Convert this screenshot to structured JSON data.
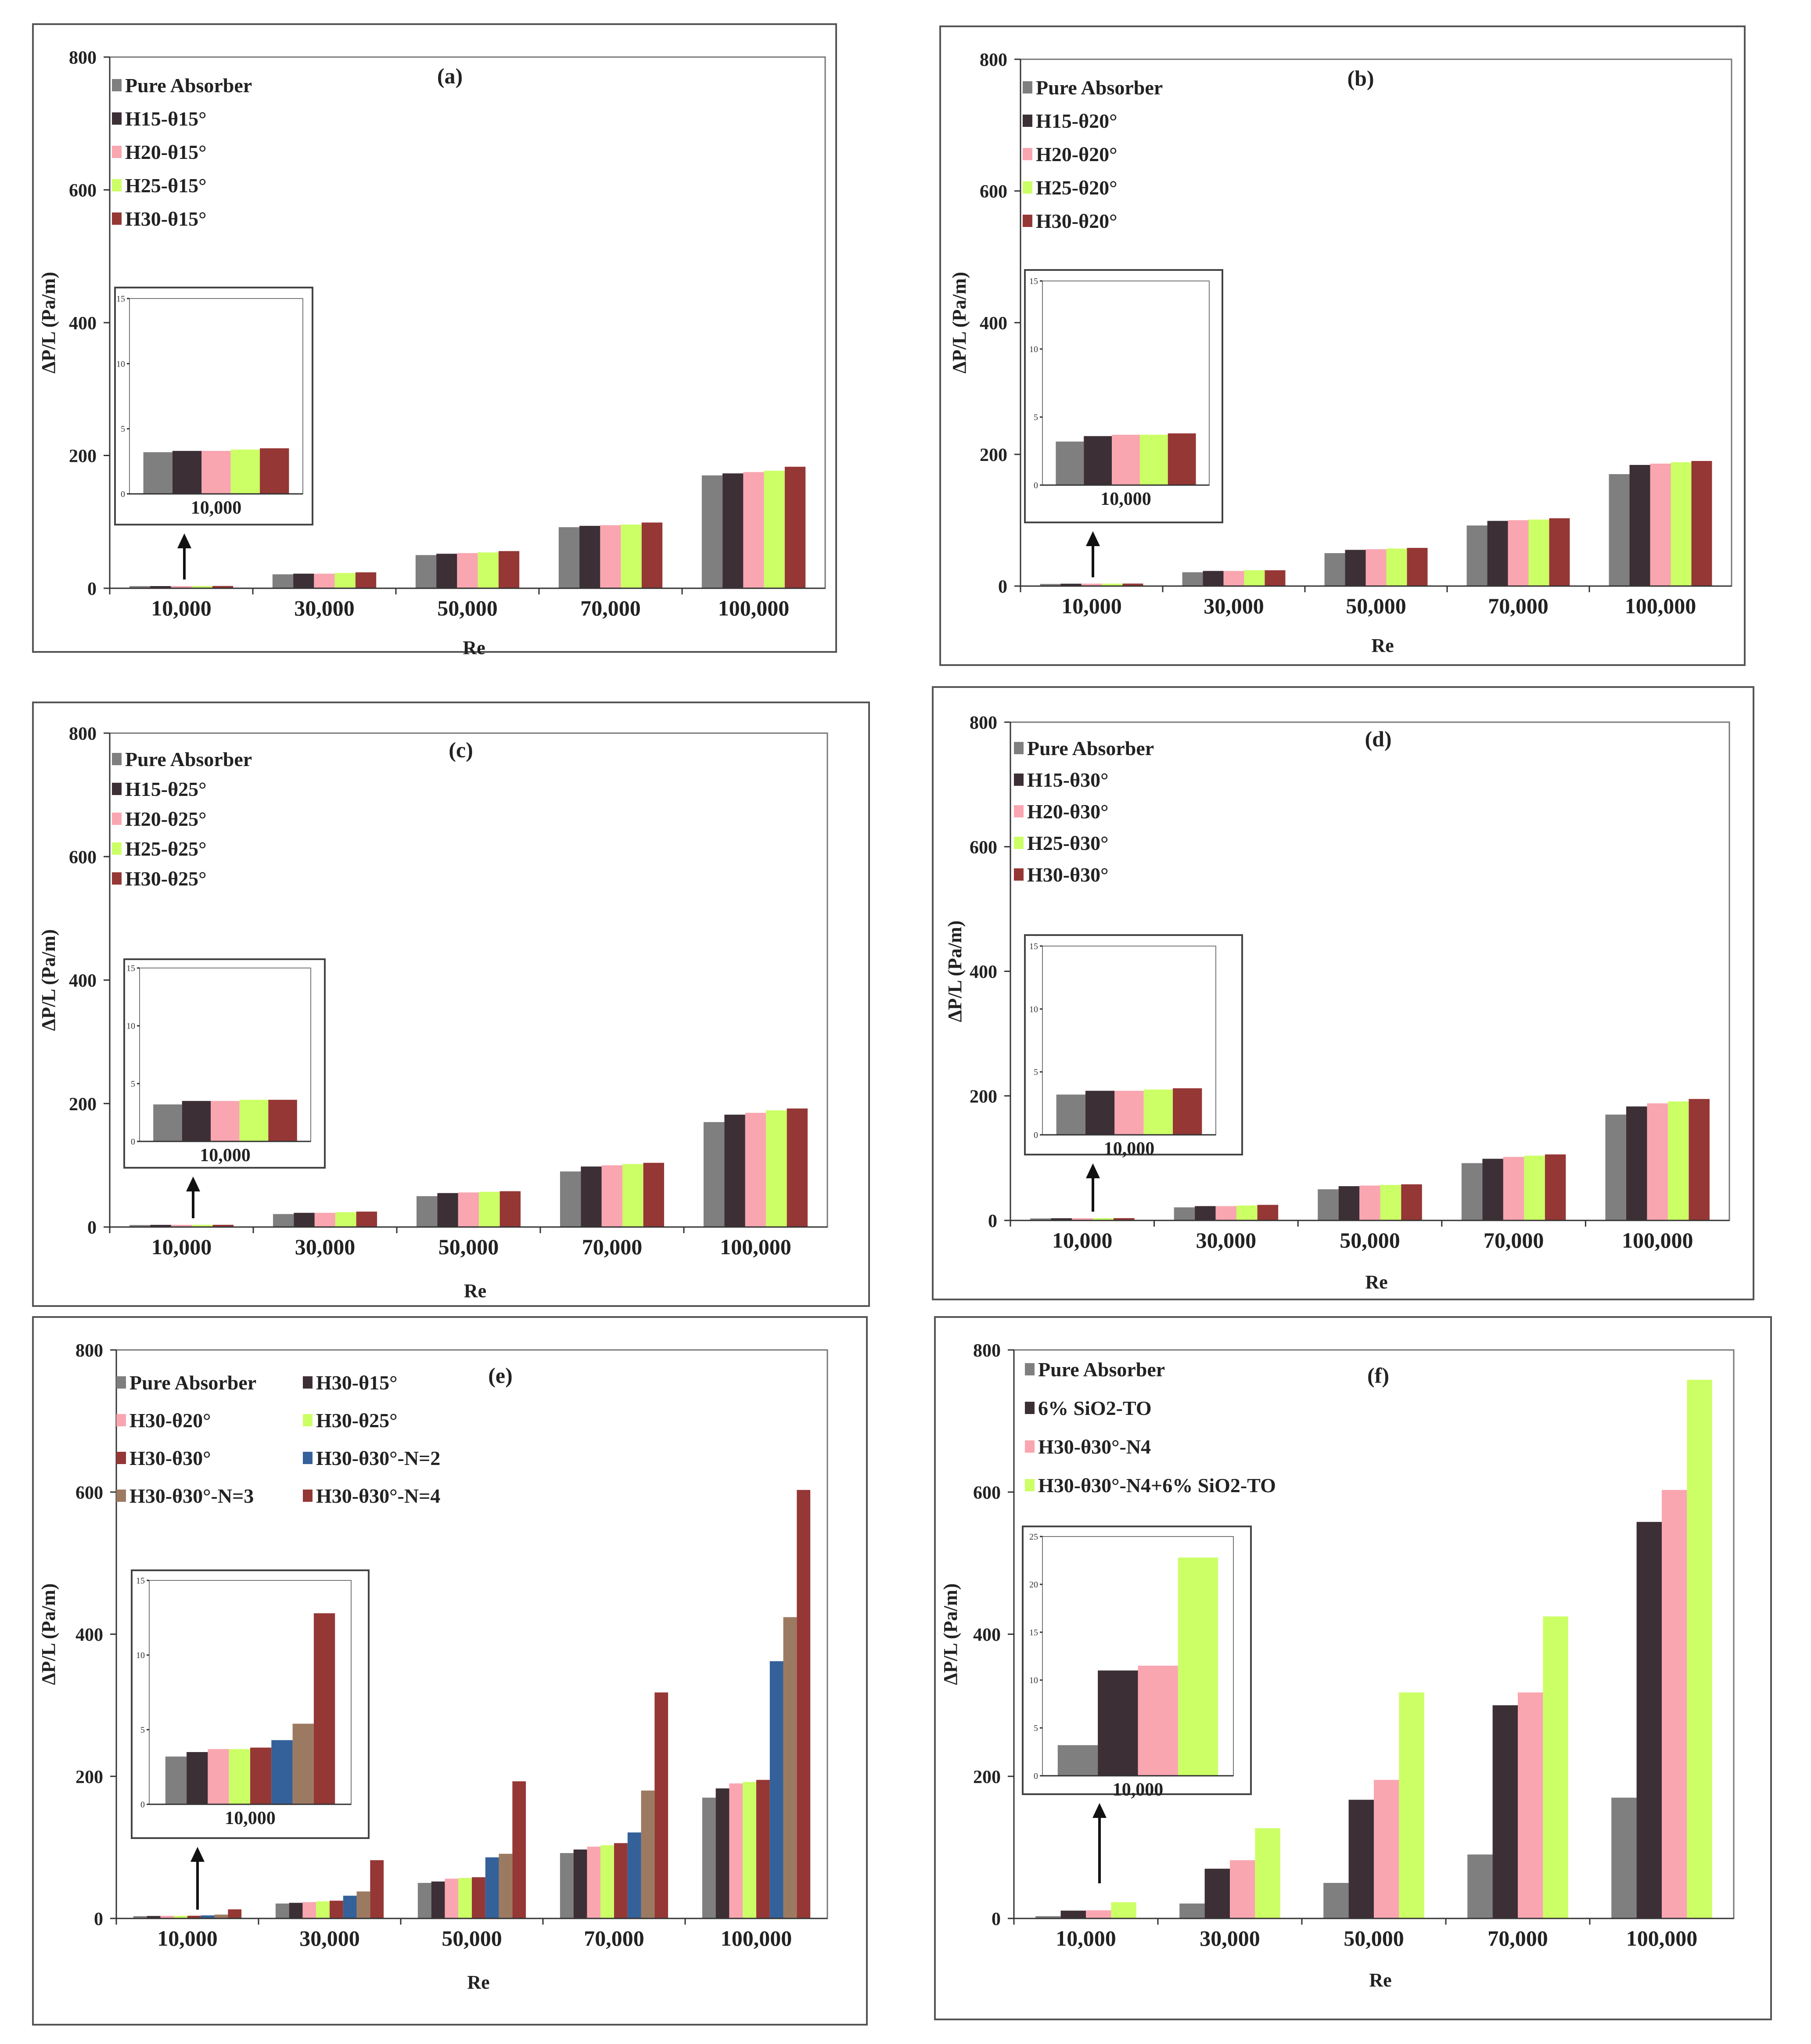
{
  "figure": {
    "xlabel": "Re",
    "ylabel": "ΔP/L (Pa/m)"
  },
  "colors": {
    "Pure Absorber": "#7f7f7f",
    "H15": "#3c2f36",
    "H20": "#f9a6b1",
    "H25": "#ccff66",
    "H30": "#953735",
    "N2": "#34619a",
    "N3": "#9c7a62",
    "N4": "#953735",
    "SiO2": "#3c2f36"
  },
  "chart_data": [
    {
      "type": "bar",
      "title": "(a)",
      "xlabel": "Re",
      "ylabel": "ΔP/L (Pa/m)",
      "ylim": [
        0,
        800
      ],
      "yticks": [
        0,
        200,
        400,
        600,
        800
      ],
      "categories": [
        "10,000",
        "30,000",
        "50,000",
        "70,000",
        "100,000"
      ],
      "series": [
        {
          "name": "Pure Absorber",
          "values": [
            3.2,
            21,
            50,
            92,
            170
          ]
        },
        {
          "name": "H15-θ15°",
          "values": [
            3.3,
            22,
            52,
            94,
            173
          ]
        },
        {
          "name": "H20-θ15°",
          "values": [
            3.3,
            22,
            53,
            95,
            175
          ]
        },
        {
          "name": "H25-θ15°",
          "values": [
            3.4,
            23,
            54,
            96,
            177
          ]
        },
        {
          "name": "H30-θ15°",
          "values": [
            3.5,
            24,
            56,
            99,
            183
          ]
        }
      ],
      "inset": {
        "ylim": [
          0,
          15
        ],
        "yticks": [
          0,
          5,
          10,
          15
        ],
        "category": "10,000"
      }
    },
    {
      "type": "bar",
      "title": "(b)",
      "xlabel": "Re",
      "ylabel": "ΔP/L (Pa/m)",
      "ylim": [
        0,
        800
      ],
      "yticks": [
        0,
        200,
        400,
        600,
        800
      ],
      "categories": [
        "10,000",
        "30,000",
        "50,000",
        "70,000",
        "100,000"
      ],
      "series": [
        {
          "name": "Pure Absorber",
          "values": [
            3.2,
            21,
            50,
            92,
            170
          ]
        },
        {
          "name": "H15-θ20°",
          "values": [
            3.6,
            23,
            55,
            99,
            184
          ]
        },
        {
          "name": "H20-θ20°",
          "values": [
            3.7,
            23,
            56,
            100,
            186
          ]
        },
        {
          "name": "H25-θ20°",
          "values": [
            3.7,
            24,
            57,
            101,
            188
          ]
        },
        {
          "name": "H30-θ20°",
          "values": [
            3.8,
            24,
            58,
            103,
            190
          ]
        }
      ],
      "inset": {
        "ylim": [
          0,
          15
        ],
        "yticks": [
          0,
          5,
          10,
          15
        ],
        "category": "10,000"
      }
    },
    {
      "type": "bar",
      "title": "(c)",
      "xlabel": "Re",
      "ylabel": "ΔP/L (Pa/m)",
      "ylim": [
        0,
        800
      ],
      "yticks": [
        0,
        200,
        400,
        600,
        800
      ],
      "categories": [
        "10,000",
        "30,000",
        "50,000",
        "70,000",
        "100,000"
      ],
      "series": [
        {
          "name": "Pure Absorber",
          "values": [
            3.2,
            21,
            50,
            90,
            170
          ]
        },
        {
          "name": "H15-θ25°",
          "values": [
            3.5,
            23,
            55,
            98,
            182
          ]
        },
        {
          "name": "H20-θ25°",
          "values": [
            3.5,
            23,
            56,
            100,
            185
          ]
        },
        {
          "name": "H25-θ25°",
          "values": [
            3.6,
            24,
            57,
            102,
            189
          ]
        },
        {
          "name": "H30-θ25°",
          "values": [
            3.6,
            25,
            58,
            104,
            192
          ]
        }
      ],
      "inset": {
        "ylim": [
          0,
          15
        ],
        "yticks": [
          0,
          5,
          10,
          15
        ],
        "category": "10,000"
      }
    },
    {
      "type": "bar",
      "title": "(d)",
      "xlabel": "Re",
      "ylabel": "ΔP/L (Pa/m)",
      "ylim": [
        0,
        800
      ],
      "yticks": [
        0,
        200,
        400,
        600,
        800
      ],
      "categories": [
        "10,000",
        "30,000",
        "50,000",
        "70,000",
        "100,000"
      ],
      "series": [
        {
          "name": "Pure Absorber",
          "values": [
            3.2,
            21,
            50,
            92,
            170
          ]
        },
        {
          "name": "H15-θ30°",
          "values": [
            3.5,
            23,
            55,
            99,
            183
          ]
        },
        {
          "name": "H20-θ30°",
          "values": [
            3.5,
            23,
            56,
            102,
            188
          ]
        },
        {
          "name": "H25-θ30°",
          "values": [
            3.6,
            24,
            57,
            104,
            191
          ]
        },
        {
          "name": "H30-θ30°",
          "values": [
            3.7,
            25,
            58,
            106,
            195
          ]
        }
      ],
      "inset": {
        "ylim": [
          0,
          15
        ],
        "yticks": [
          0,
          5,
          10,
          15
        ],
        "category": "10,000"
      }
    },
    {
      "type": "bar",
      "title": "(e)",
      "xlabel": "Re",
      "ylabel": "ΔP/L (Pa/m)",
      "ylim": [
        0,
        800
      ],
      "yticks": [
        0,
        200,
        400,
        600,
        800
      ],
      "categories": [
        "10,000",
        "30,000",
        "50,000",
        "70,000",
        "100,000"
      ],
      "series": [
        {
          "name": "Pure Absorber",
          "values": [
            3.2,
            21,
            50,
            92,
            170
          ]
        },
        {
          "name": "H30-θ15°",
          "values": [
            3.5,
            22,
            52,
            97,
            183
          ]
        },
        {
          "name": "H30-θ20°",
          "values": [
            3.7,
            23,
            56,
            101,
            190
          ]
        },
        {
          "name": "H30-θ25°",
          "values": [
            3.7,
            24,
            57,
            103,
            192
          ]
        },
        {
          "name": "H30-θ30°",
          "values": [
            3.8,
            25,
            58,
            106,
            195
          ]
        },
        {
          "name": "H30-θ30°-N=2",
          "values": [
            4.3,
            32,
            86,
            121,
            362
          ]
        },
        {
          "name": "H30-θ30°-N=3",
          "values": [
            5.4,
            38,
            91,
            180,
            424
          ]
        },
        {
          "name": "H30-θ30°-N=4",
          "values": [
            12.8,
            82,
            193,
            318,
            603
          ]
        }
      ],
      "inset": {
        "ylim": [
          0,
          15
        ],
        "yticks": [
          0,
          5,
          10,
          15
        ],
        "category": "10,000"
      }
    },
    {
      "type": "bar",
      "title": "(f)",
      "xlabel": "Re",
      "ylabel": "ΔP/L (Pa/m)",
      "ylim": [
        0,
        800
      ],
      "yticks": [
        0,
        200,
        400,
        600,
        800
      ],
      "categories": [
        "10,000",
        "30,000",
        "50,000",
        "70,000",
        "100,000"
      ],
      "series": [
        {
          "name": "Pure Absorber",
          "values": [
            3.2,
            21,
            50,
            90,
            170
          ]
        },
        {
          "name": "6% SiO2-TO",
          "values": [
            11,
            70,
            167,
            300,
            558
          ]
        },
        {
          "name": "H30-θ30°-N4",
          "values": [
            11.5,
            82,
            195,
            318,
            603
          ]
        },
        {
          "name": "H30-θ30°-N4+6% SiO2-TO",
          "values": [
            22.8,
            127,
            318,
            425,
            758
          ]
        }
      ],
      "inset": {
        "ylim": [
          0,
          25
        ],
        "yticks": [
          0,
          5,
          10,
          15,
          20,
          25
        ],
        "category": "10,000"
      }
    }
  ]
}
